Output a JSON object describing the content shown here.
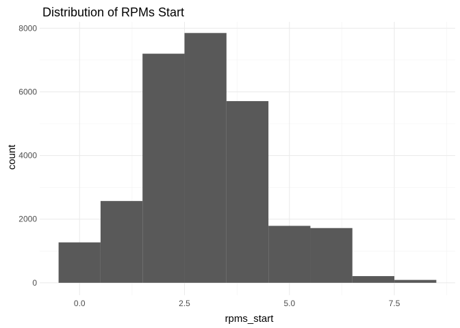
{
  "chart_data": {
    "type": "bar",
    "title": "Distribution of RPMs Start",
    "xlabel": "rpms_start",
    "ylabel": "count",
    "bin_width": 1,
    "bins": [
      {
        "center": 0,
        "count": 1270
      },
      {
        "center": 1,
        "count": 2570
      },
      {
        "center": 2,
        "count": 7200
      },
      {
        "center": 3,
        "count": 7850
      },
      {
        "center": 4,
        "count": 5710
      },
      {
        "center": 5,
        "count": 1790
      },
      {
        "center": 6,
        "count": 1720
      },
      {
        "center": 7,
        "count": 210
      },
      {
        "center": 8,
        "count": 90
      }
    ],
    "xlim": [
      -0.95,
      8.95
    ],
    "ylim": [
      -390,
      8200
    ],
    "x_ticks": [
      0,
      2.5,
      5,
      7.5
    ],
    "x_tick_labels": [
      "0.0",
      "2.5",
      "5.0",
      "7.5"
    ],
    "y_ticks": [
      0,
      2000,
      4000,
      6000,
      8000
    ],
    "y_tick_labels": [
      "0",
      "2000",
      "4000",
      "6000",
      "8000"
    ],
    "bar_color": "#595959",
    "grid": true,
    "legend": "none"
  }
}
